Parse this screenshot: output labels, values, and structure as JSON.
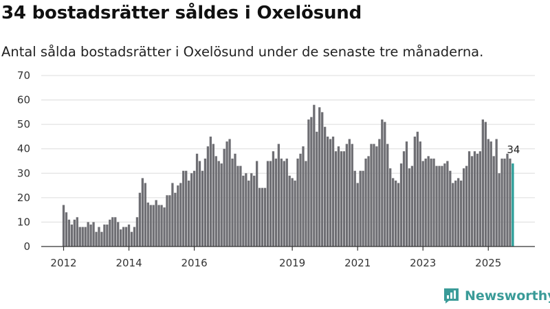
{
  "header": {
    "title": "34 bostadsrätter såldes i Oxelösund",
    "subtitle": "Antal sålda bostadsrätter i Oxelösund under de senaste tre månaderna."
  },
  "chart_data": {
    "type": "bar",
    "title": "34 bostadsrätter såldes i Oxelösund",
    "subtitle": "Antal sålda bostadsrätter i Oxelösund under de senaste tre månaderna.",
    "xlabel": "",
    "ylabel": "",
    "ylim": [
      0,
      70
    ],
    "yticks": [
      0,
      10,
      20,
      30,
      40,
      50,
      60,
      70
    ],
    "grid": true,
    "bar_color": "#6e6e73",
    "highlight_color": "#2a9d98",
    "x_start": "2012-01",
    "xtick_labels": [
      {
        "label": "2012",
        "index": 0
      },
      {
        "label": "2014",
        "index": 24
      },
      {
        "label": "2016",
        "index": 48
      },
      {
        "label": "2019",
        "index": 84
      },
      {
        "label": "2021",
        "index": 108
      },
      {
        "label": "2023",
        "index": 132
      },
      {
        "label": "2025",
        "index": 156
      }
    ],
    "highlight_label": "34",
    "values": [
      17,
      14,
      11,
      9,
      11,
      12,
      8,
      8,
      8,
      10,
      9,
      10,
      6,
      8,
      6,
      9,
      9,
      11,
      12,
      12,
      10,
      7,
      8,
      8,
      9,
      6,
      8,
      12,
      22,
      28,
      26,
      18,
      17,
      17,
      19,
      17,
      17,
      16,
      21,
      21,
      26,
      22,
      25,
      26,
      31,
      31,
      27,
      30,
      31,
      38,
      35,
      31,
      36,
      41,
      45,
      42,
      37,
      35,
      34,
      40,
      43,
      44,
      36,
      38,
      33,
      33,
      29,
      30,
      27,
      30,
      29,
      35,
      24,
      24,
      24,
      35,
      35,
      39,
      36,
      42,
      36,
      35,
      36,
      29,
      28,
      27,
      36,
      38,
      41,
      35,
      52,
      53,
      58,
      47,
      57,
      55,
      49,
      45,
      44,
      45,
      39,
      41,
      39,
      39,
      42,
      44,
      42,
      31,
      26,
      31,
      31,
      36,
      37,
      42,
      42,
      41,
      44,
      52,
      51,
      42,
      32,
      28,
      27,
      26,
      34,
      39,
      43,
      32,
      33,
      45,
      47,
      43,
      35,
      36,
      37,
      36,
      36,
      33,
      33,
      33,
      34,
      35,
      31,
      26,
      27,
      28,
      27,
      32,
      33,
      39,
      37,
      39,
      38,
      39,
      52,
      51,
      44,
      43,
      37,
      44,
      30,
      36,
      36,
      38,
      36,
      34
    ]
  },
  "brand": {
    "name": "Newsworthy",
    "color": "#3a9b98"
  }
}
